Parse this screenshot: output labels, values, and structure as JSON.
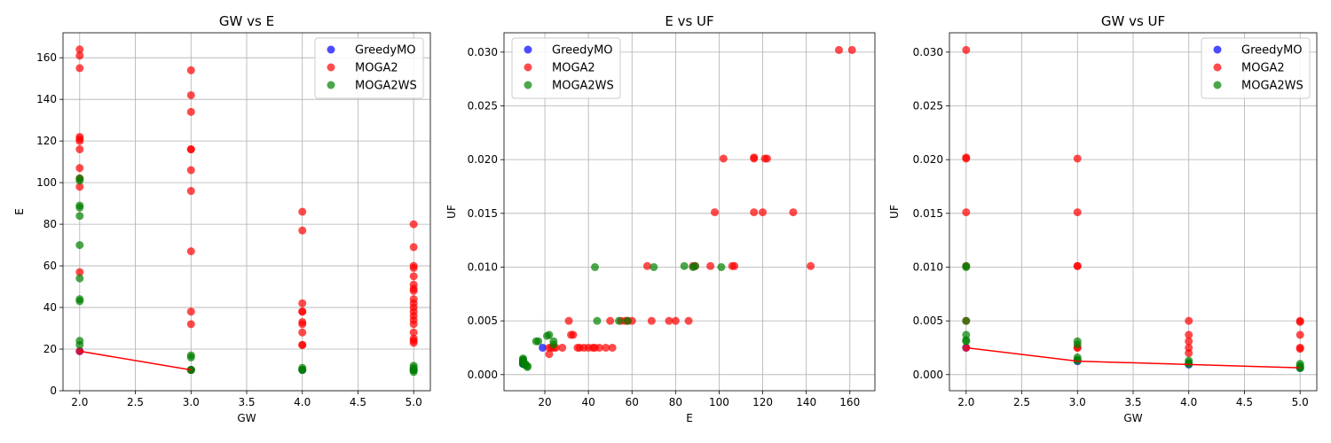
{
  "chart_data": [
    {
      "type": "scatter",
      "title": "GW vs E",
      "xlabel": "GW",
      "ylabel": "E",
      "xlim": [
        1.85,
        5.15
      ],
      "ylim": [
        0,
        172
      ],
      "xticks": [
        "2.0",
        "2.5",
        "3.0",
        "3.5",
        "4.0",
        "4.5",
        "5.0"
      ],
      "yticks": [
        "0",
        "20",
        "40",
        "60",
        "80",
        "100",
        "120",
        "140",
        "160"
      ],
      "xtick_values": [
        2.0,
        2.5,
        3.0,
        3.5,
        4.0,
        4.5,
        5.0
      ],
      "ytick_values": [
        0,
        20,
        40,
        60,
        80,
        100,
        120,
        140,
        160
      ],
      "grid": true,
      "legend_position": "top-right",
      "series": [
        {
          "name": "GreedyMO",
          "color": "#0000ff",
          "x": [
            2,
            3,
            3,
            4,
            5
          ],
          "y": [
            19,
            10,
            10,
            10,
            10
          ]
        },
        {
          "name": "MOGA2",
          "color": "#ff0000",
          "x": [
            2,
            2,
            2,
            2,
            2,
            2,
            2,
            2,
            2,
            2,
            2,
            2,
            3,
            3,
            3,
            3,
            3,
            3,
            3,
            3,
            3,
            3,
            3,
            4,
            4,
            4,
            4,
            4,
            4,
            4,
            4,
            4,
            4,
            5,
            5,
            5,
            5,
            5,
            5,
            5,
            5,
            5,
            5,
            5,
            5,
            5,
            5,
            5,
            5,
            5,
            5,
            5
          ],
          "y": [
            164,
            161,
            155,
            122,
            121,
            120,
            116,
            107,
            102,
            98,
            57,
            19,
            154,
            142,
            134,
            116,
            116,
            106,
            96,
            67,
            38,
            32,
            10,
            86,
            77,
            42,
            38,
            38,
            33,
            32,
            28,
            22,
            22,
            80,
            69,
            60,
            59,
            55,
            51,
            49,
            48,
            44,
            42,
            40,
            38,
            36,
            34,
            32,
            28,
            25,
            24,
            23
          ]
        },
        {
          "name": "MOGA2WS",
          "color": "#008000",
          "x": [
            2,
            2,
            2,
            2,
            2,
            2,
            2,
            2,
            2,
            2,
            2,
            3,
            3,
            3,
            3,
            4,
            4,
            4,
            5,
            5,
            5,
            5,
            5
          ],
          "y": [
            102,
            101,
            89,
            88,
            84,
            70,
            54,
            44,
            43,
            24,
            22,
            17,
            16,
            10,
            10,
            11,
            10,
            10,
            12,
            11,
            10,
            10,
            9
          ]
        }
      ],
      "frontier": {
        "color": "#ff0000",
        "x": [
          2,
          3
        ],
        "y": [
          19,
          10
        ]
      }
    },
    {
      "type": "scatter",
      "title": "E vs UF",
      "xlabel": "E",
      "ylabel": "UF",
      "xlim": [
        1.25,
        171.5
      ],
      "ylim": [
        -0.0015,
        0.0318
      ],
      "xticks": [
        "20",
        "40",
        "60",
        "80",
        "100",
        "120",
        "140",
        "160"
      ],
      "yticks": [
        "0.000",
        "0.005",
        "0.010",
        "0.015",
        "0.020",
        "0.025",
        "0.030"
      ],
      "xtick_values": [
        20,
        40,
        60,
        80,
        100,
        120,
        140,
        160
      ],
      "ytick_values": [
        0,
        0.005,
        0.01,
        0.015,
        0.02,
        0.025,
        0.03
      ],
      "grid": true,
      "legend_position": "top-left",
      "series": [
        {
          "name": "GreedyMO",
          "color": "#0000ff",
          "x": [
            19,
            10,
            10,
            10,
            10
          ],
          "y": [
            0.0025,
            0.00125,
            0.00125,
            0.001,
            0.001
          ]
        },
        {
          "name": "MOGA2",
          "color": "#ff0000",
          "x": [
            155,
            161,
            102,
            116,
            116,
            121,
            122,
            98,
            116,
            120,
            134,
            107,
            106,
            142,
            67,
            96,
            89,
            88,
            22,
            31,
            32,
            33,
            25,
            28,
            24,
            23,
            36,
            38,
            40,
            42,
            45,
            48,
            51,
            43,
            35,
            22,
            55,
            57,
            60,
            69,
            77,
            80,
            86,
            50,
            58
          ],
          "y": [
            0.0302,
            0.0302,
            0.0201,
            0.0201,
            0.0202,
            0.0201,
            0.0201,
            0.0151,
            0.0151,
            0.0151,
            0.0151,
            0.0101,
            0.0101,
            0.0101,
            0.0101,
            0.0101,
            0.0101,
            0.0101,
            0.0019,
            0.005,
            0.0037,
            0.0037,
            0.0025,
            0.0025,
            0.0025,
            0.0025,
            0.0025,
            0.0025,
            0.0025,
            0.0025,
            0.0025,
            0.0025,
            0.0025,
            0.0025,
            0.0025,
            0.0025,
            0.005,
            0.005,
            0.005,
            0.005,
            0.005,
            0.005,
            0.005,
            0.005,
            0.005
          ]
        },
        {
          "name": "MOGA2WS",
          "color": "#008000",
          "x": [
            43,
            70,
            84,
            88,
            89,
            101,
            54,
            44,
            58,
            10,
            10,
            10,
            10,
            10,
            11,
            11,
            12,
            12,
            16,
            17,
            24,
            24,
            22,
            21
          ],
          "y": [
            0.01,
            0.01,
            0.0101,
            0.01,
            0.0101,
            0.01,
            0.005,
            0.005,
            0.005,
            0.0015,
            0.0013,
            0.0011,
            0.001,
            0.0014,
            0.001,
            0.0009,
            0.0008,
            0.0007,
            0.0031,
            0.0031,
            0.0031,
            0.0028,
            0.0037,
            0.0036
          ]
        }
      ]
    },
    {
      "type": "scatter",
      "title": "GW vs UF",
      "xlabel": "GW",
      "ylabel": "UF",
      "xlim": [
        1.85,
        5.15
      ],
      "ylim": [
        -0.0015,
        0.0318
      ],
      "xticks": [
        "2.0",
        "2.5",
        "3.0",
        "3.5",
        "4.0",
        "4.5",
        "5.0"
      ],
      "yticks": [
        "0.000",
        "0.005",
        "0.010",
        "0.015",
        "0.020",
        "0.025",
        "0.030"
      ],
      "xtick_values": [
        2.0,
        2.5,
        3.0,
        3.5,
        4.0,
        4.5,
        5.0
      ],
      "ytick_values": [
        0,
        0.005,
        0.01,
        0.015,
        0.02,
        0.025,
        0.03
      ],
      "grid": true,
      "legend_position": "top-right",
      "series": [
        {
          "name": "GreedyMO",
          "color": "#0000ff",
          "x": [
            2,
            3,
            4,
            5
          ],
          "y": [
            0.0025,
            0.00125,
            0.00094,
            0.00063
          ]
        },
        {
          "name": "MOGA2",
          "color": "#ff0000",
          "x": [
            2,
            2,
            2,
            2,
            2,
            2,
            2,
            3,
            3,
            3,
            3,
            3,
            3,
            4,
            4,
            4,
            4,
            4,
            5,
            5,
            5,
            5,
            5
          ],
          "y": [
            0.0302,
            0.0201,
            0.0202,
            0.0151,
            0.0101,
            0.0025,
            0.005,
            0.0201,
            0.0151,
            0.0101,
            0.0101,
            0.0025,
            0.0025,
            0.005,
            0.0037,
            0.0031,
            0.0025,
            0.002,
            0.005,
            0.0049,
            0.0037,
            0.0025,
            0.0024
          ]
        },
        {
          "name": "MOGA2WS",
          "color": "#008000",
          "x": [
            2,
            2,
            2,
            2,
            2,
            2,
            3,
            3,
            3,
            3,
            3,
            4,
            4,
            4,
            5,
            5,
            5,
            5
          ],
          "y": [
            0.01,
            0.0101,
            0.005,
            0.0037,
            0.0031,
            0.0032,
            0.0031,
            0.0028,
            0.0016,
            0.0013,
            0.0014,
            0.0013,
            0.001,
            0.0011,
            0.001,
            0.0008,
            0.0007,
            0.0006
          ]
        }
      ],
      "frontier": {
        "color": "#ff0000",
        "x": [
          2,
          3,
          4,
          5
        ],
        "y": [
          0.0025,
          0.00125,
          0.00094,
          0.00063
        ]
      }
    }
  ]
}
